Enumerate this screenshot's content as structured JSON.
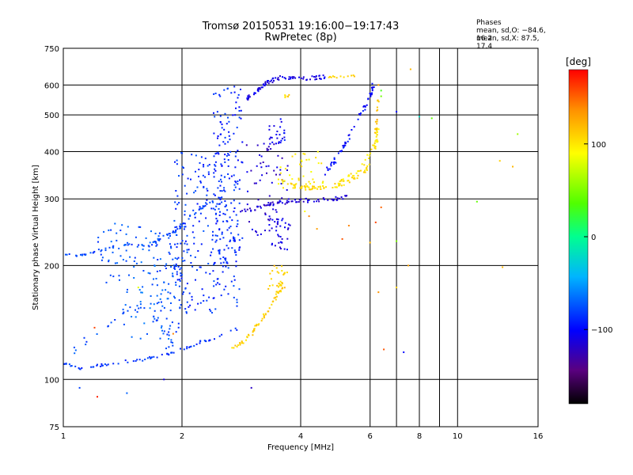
{
  "title": "Tromsø 20150531 19:16:00−19:17:43",
  "subtitle": "RwPretec (8p)",
  "stats": {
    "header": "Phases",
    "line_o": "mean, sd,O: −84.6, 16.2",
    "line_x": "mean, sd,X:  87.5, 17.4"
  },
  "colorbar": {
    "label": "[deg]",
    "ticks": [
      {
        "value": 100,
        "label": "100"
      },
      {
        "value": 0,
        "label": "0"
      },
      {
        "value": -100,
        "label": "−100"
      }
    ],
    "range": [
      -180,
      180
    ]
  },
  "chart_data": {
    "type": "scatter",
    "title": "Tromsø 20150531 19:16:00−19:17:43",
    "subtitle": "RwPretec (8p)",
    "xlabel": "Frequency [MHz]",
    "ylabel": "Stationary phase Virtual Height [km]",
    "x_scale": "log",
    "y_scale": "log",
    "xlim": [
      1,
      16
    ],
    "ylim": [
      75,
      750
    ],
    "grid": true,
    "xticks": [
      {
        "value": 1,
        "label": "1"
      },
      {
        "value": 2,
        "label": "2"
      },
      {
        "value": 4,
        "label": "4"
      },
      {
        "value": 6,
        "label": "6"
      },
      {
        "value": 8,
        "label": "8"
      },
      {
        "value": 10,
        "label": "10"
      },
      {
        "value": 16,
        "label": "16"
      }
    ],
    "yticks": [
      {
        "value": 75,
        "label": "75"
      },
      {
        "value": 100,
        "label": "100"
      },
      {
        "value": 200,
        "label": "200"
      },
      {
        "value": 300,
        "label": "300"
      },
      {
        "value": 400,
        "label": "400"
      },
      {
        "value": 500,
        "label": "500"
      },
      {
        "value": 600,
        "label": "600"
      },
      {
        "value": 750,
        "label": "750"
      }
    ],
    "minor_xgrid": [
      7,
      9
    ],
    "clusters": [
      {
        "kind": "line",
        "phase": -80,
        "n": 70,
        "jitter": 0.004,
        "pts": [
          [
            1.0,
            215
          ],
          [
            1.08,
            212
          ],
          [
            1.2,
            218
          ],
          [
            1.35,
            222
          ],
          [
            1.5,
            228
          ],
          [
            1.65,
            225
          ],
          [
            1.8,
            238
          ],
          [
            1.95,
            248
          ],
          [
            2.1,
            270
          ],
          [
            2.3,
            290
          ],
          [
            2.5,
            300
          ]
        ]
      },
      {
        "kind": "line",
        "phase": -85,
        "n": 75,
        "jitter": 0.004,
        "pts": [
          [
            1.0,
            110
          ],
          [
            1.1,
            107
          ],
          [
            1.25,
            109
          ],
          [
            1.4,
            111
          ],
          [
            1.6,
            113
          ],
          [
            1.8,
            116
          ],
          [
            2.0,
            120
          ],
          [
            2.2,
            125
          ],
          [
            2.5,
            130
          ],
          [
            2.8,
            137
          ]
        ]
      },
      {
        "kind": "line",
        "phase": -78,
        "n": 40,
        "jitter": 0.012,
        "pts": [
          [
            1.05,
            118
          ],
          [
            1.15,
            128
          ],
          [
            1.3,
            140
          ],
          [
            1.45,
            150
          ],
          [
            1.6,
            158
          ],
          [
            1.75,
            140
          ],
          [
            1.9,
            125
          ]
        ]
      },
      {
        "kind": "blob",
        "phase": -85,
        "n": 230,
        "f": [
          1.9,
          2.8
        ],
        "h": [
          150,
          400
        ]
      },
      {
        "kind": "blob",
        "phase": -90,
        "n": 150,
        "f": [
          2.4,
          2.85
        ],
        "h": [
          200,
          600
        ]
      },
      {
        "kind": "blob",
        "phase": -78,
        "n": 70,
        "f": [
          1.65,
          2.1
        ],
        "h": [
          130,
          250
        ]
      },
      {
        "kind": "blob",
        "phase": -70,
        "n": 60,
        "f": [
          1.4,
          1.9
        ],
        "h": [
          120,
          240
        ]
      },
      {
        "kind": "blob",
        "phase": -75,
        "n": 45,
        "f": [
          1.2,
          1.6
        ],
        "h": [
          180,
          260
        ]
      },
      {
        "kind": "line",
        "phase": -110,
        "n": 80,
        "jitter": 0.006,
        "pts": [
          [
            2.9,
            550
          ],
          [
            3.1,
            580
          ],
          [
            3.3,
            610
          ],
          [
            3.5,
            625
          ],
          [
            3.8,
            630
          ],
          [
            4.2,
            625
          ],
          [
            4.7,
            630
          ]
        ]
      },
      {
        "kind": "line",
        "phase": -115,
        "n": 70,
        "jitter": 0.006,
        "pts": [
          [
            2.8,
            275
          ],
          [
            3.1,
            285
          ],
          [
            3.4,
            292
          ],
          [
            3.8,
            295
          ],
          [
            4.3,
            298
          ],
          [
            4.8,
            300
          ],
          [
            5.3,
            305
          ]
        ]
      },
      {
        "kind": "blob",
        "phase": -115,
        "n": 70,
        "f": [
          2.9,
          3.8
        ],
        "h": [
          240,
          420
        ]
      },
      {
        "kind": "blob",
        "phase": -110,
        "n": 35,
        "f": [
          3.3,
          3.75
        ],
        "h": [
          220,
          270
        ]
      },
      {
        "kind": "line",
        "phase": -100,
        "n": 60,
        "jitter": 0.007,
        "pts": [
          [
            4.6,
            350
          ],
          [
            4.9,
            380
          ],
          [
            5.2,
            420
          ],
          [
            5.5,
            470
          ],
          [
            5.8,
            520
          ],
          [
            6.0,
            560
          ],
          [
            6.1,
            600
          ]
        ]
      },
      {
        "kind": "blob",
        "phase": -100,
        "n": 25,
        "f": [
          3.3,
          3.65
        ],
        "h": [
          420,
          490
        ]
      },
      {
        "kind": "line",
        "phase": 105,
        "n": 70,
        "jitter": 0.006,
        "pts": [
          [
            3.5,
            340
          ],
          [
            3.8,
            325
          ],
          [
            4.2,
            320
          ],
          [
            4.7,
            322
          ],
          [
            5.2,
            330
          ],
          [
            5.7,
            345
          ],
          [
            6.0,
            370
          ]
        ]
      },
      {
        "kind": "line",
        "phase": 100,
        "n": 50,
        "jitter": 0.008,
        "pts": [
          [
            5.0,
            330
          ],
          [
            5.5,
            350
          ],
          [
            5.9,
            380
          ],
          [
            6.2,
            420
          ],
          [
            6.3,
            460
          ]
        ]
      },
      {
        "kind": "blob",
        "phase": 95,
        "n": 40,
        "f": [
          3.5,
          4.6
        ],
        "h": [
          320,
          400
        ]
      },
      {
        "kind": "line",
        "phase": 108,
        "n": 60,
        "jitter": 0.008,
        "pts": [
          [
            2.6,
            120
          ],
          [
            2.8,
            124
          ],
          [
            3.0,
            132
          ],
          [
            3.2,
            145
          ],
          [
            3.4,
            160
          ],
          [
            3.55,
            175
          ],
          [
            3.65,
            190
          ]
        ]
      },
      {
        "kind": "blob",
        "phase": 110,
        "n": 25,
        "f": [
          3.3,
          3.7
        ],
        "h": [
          170,
          200
        ]
      },
      {
        "kind": "line",
        "phase": 112,
        "n": 12,
        "jitter": 0.004,
        "pts": [
          [
            4.7,
            630
          ],
          [
            5.1,
            632
          ],
          [
            5.5,
            634
          ]
        ]
      },
      {
        "kind": "blob",
        "phase": 110,
        "n": 6,
        "f": [
          3.65,
          3.8
        ],
        "h": [
          555,
          570
        ]
      },
      {
        "kind": "line",
        "phase": 118,
        "n": 15,
        "jitter": 0.006,
        "pts": [
          [
            6.2,
            450
          ],
          [
            6.25,
            500
          ],
          [
            6.3,
            560
          ]
        ]
      }
    ],
    "scattered_points": [
      [
        6.3,
        600,
        130
      ],
      [
        6.4,
        560,
        45
      ],
      [
        6.4,
        580,
        30
      ],
      [
        7.0,
        510,
        -100
      ],
      [
        7.6,
        660,
        120
      ],
      [
        8.6,
        490,
        40
      ],
      [
        8.0,
        495,
        -20
      ],
      [
        6.4,
        285,
        150
      ],
      [
        6.2,
        260,
        160
      ],
      [
        5.3,
        255,
        140
      ],
      [
        5.1,
        235,
        155
      ],
      [
        6.0,
        230,
        120
      ],
      [
        7.0,
        232,
        50
      ],
      [
        7.0,
        175,
        110
      ],
      [
        7.5,
        200,
        130
      ],
      [
        6.3,
        170,
        135
      ],
      [
        6.5,
        120,
        155
      ],
      [
        7.3,
        118,
        -100
      ],
      [
        11.2,
        295,
        40
      ],
      [
        12.8,
        378,
        110
      ],
      [
        13.8,
        365,
        120
      ],
      [
        14.2,
        445,
        60
      ],
      [
        13.0,
        198,
        120
      ],
      [
        3.0,
        95,
        -120
      ],
      [
        1.22,
        90,
        170
      ],
      [
        1.1,
        95,
        -80
      ],
      [
        1.45,
        92,
        -70
      ],
      [
        1.8,
        100,
        -110
      ],
      [
        1.2,
        137,
        160
      ],
      [
        1.55,
        175,
        80
      ],
      [
        4.1,
        278,
        90
      ],
      [
        4.4,
        250,
        130
      ],
      [
        4.2,
        270,
        140
      ],
      [
        1.85,
        128,
        -60
      ],
      [
        1.9,
        132,
        140
      ]
    ]
  }
}
